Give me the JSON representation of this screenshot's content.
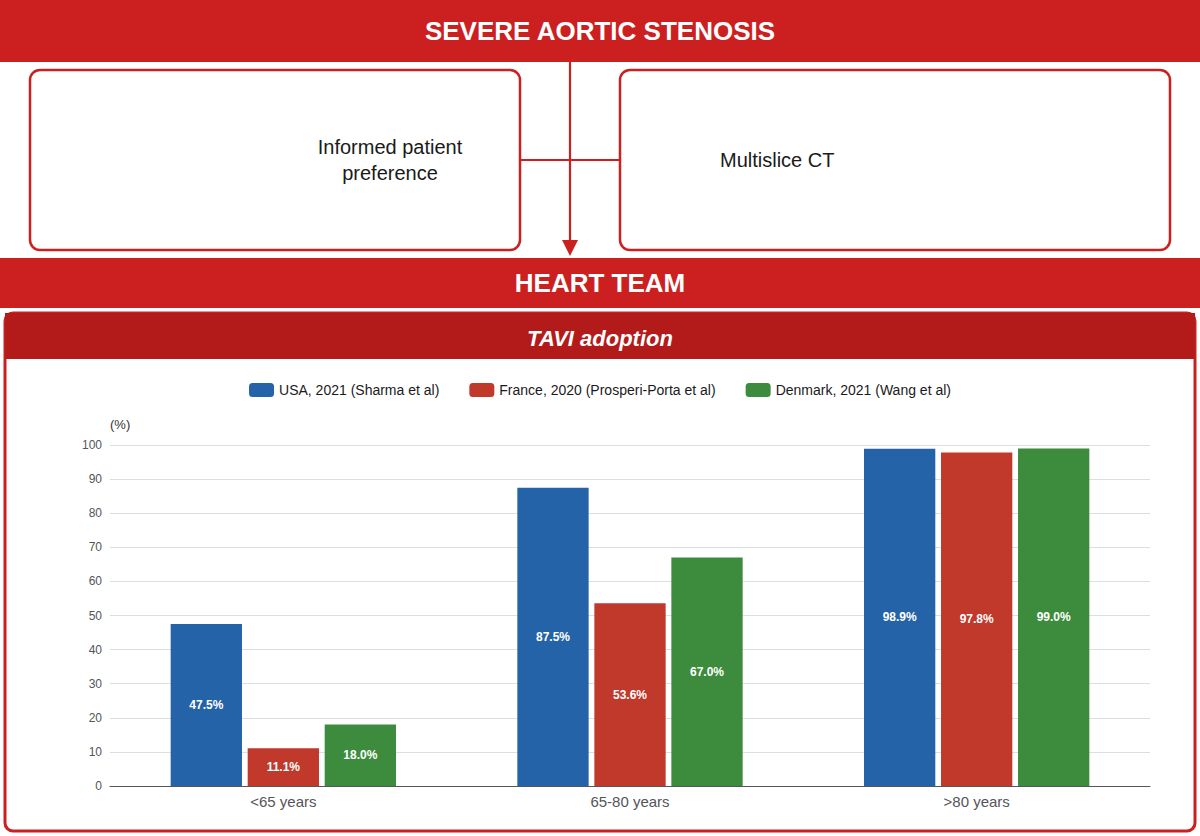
{
  "chart_data": {
    "type": "bar",
    "title": "TAVI adoption",
    "annotations": [
      "SEVERE AORTIC STENOSIS",
      "Informed patient\npreference",
      "Multislice CT",
      "HEART TEAM"
    ],
    "ylabel": "(%)",
    "categories": [
      "<65 years",
      "65-80 years",
      ">80 years"
    ],
    "series": [
      {
        "name": "USA, 2021 (Sharma et al)",
        "color": "#2563a8",
        "values": [
          47.5,
          87.5,
          98.9
        ],
        "value_labels": [
          "47.5%",
          "87.5%",
          "98.9%"
        ]
      },
      {
        "name": "France, 2020 (Prosperi-Porta et al)",
        "color": "#c0392b",
        "values": [
          11.1,
          53.6,
          97.8
        ],
        "value_labels": [
          "11.1%",
          "53.6%",
          "97.8%"
        ]
      },
      {
        "name": "Denmark, 2021 (Wang et al)",
        "color": "#3d8c3d",
        "values": [
          18.0,
          67.0,
          99.0
        ],
        "value_labels": [
          "18.0%",
          "67.0%",
          "99.0%"
        ]
      }
    ],
    "ylim": [
      0,
      100
    ],
    "yticks": [
      0,
      10,
      20,
      30,
      40,
      50,
      60,
      70,
      80,
      90,
      100
    ],
    "grid": true,
    "data_labels": true
  }
}
